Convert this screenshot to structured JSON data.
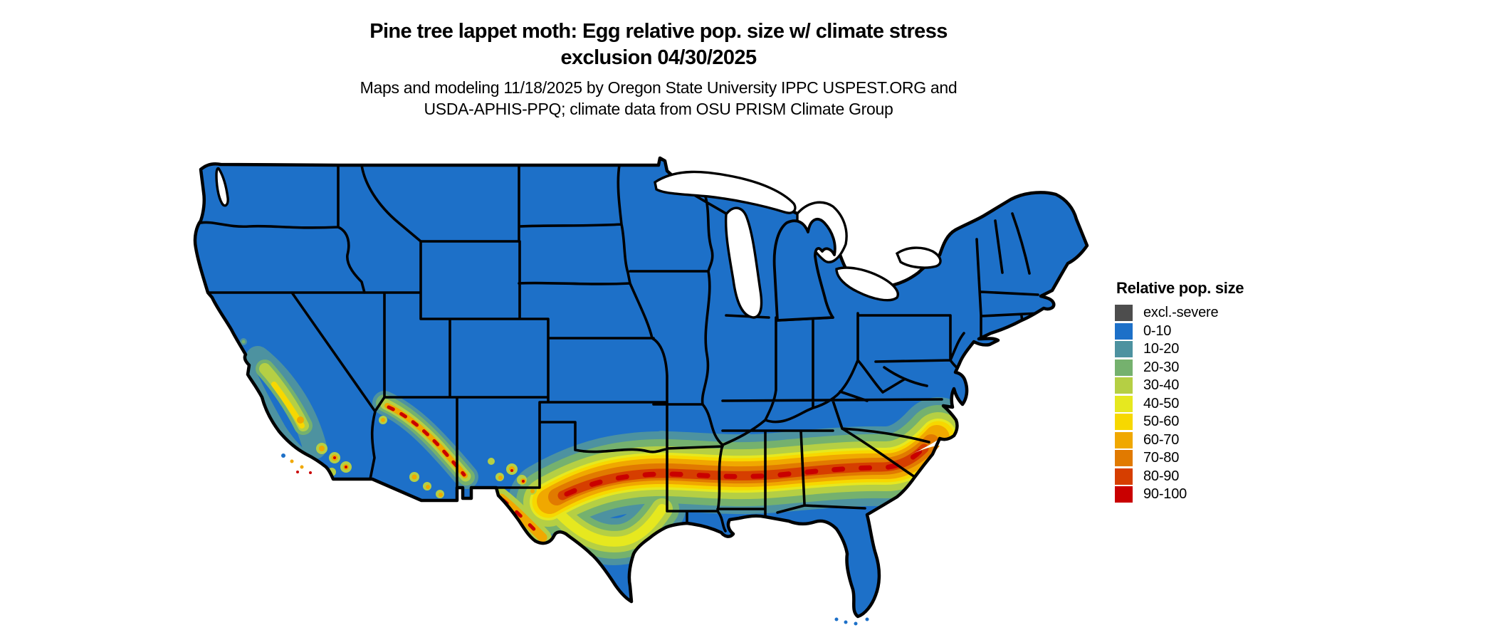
{
  "title": {
    "line1": "Pine tree lappet moth: Egg relative pop. size w/ climate stress",
    "line2": "exclusion 04/30/2025"
  },
  "subtitle": {
    "line1": "Maps and modeling 11/18/2025 by Oregon State University IPPC USPEST.ORG and",
    "line2": "USDA-APHIS-PPQ; climate data from OSU PRISM Climate Group"
  },
  "legend": {
    "title": "Relative pop. size",
    "classes": [
      {
        "label": "excl.-severe",
        "color": "#4d4d4d"
      },
      {
        "label": "0-10",
        "color": "#1d70c8"
      },
      {
        "label": "10-20",
        "color": "#4d92a0"
      },
      {
        "label": "20-30",
        "color": "#75b16e"
      },
      {
        "label": "30-40",
        "color": "#b5cf44"
      },
      {
        "label": "40-50",
        "color": "#e6e81f"
      },
      {
        "label": "50-60",
        "color": "#f7d800"
      },
      {
        "label": "60-70",
        "color": "#f0a800"
      },
      {
        "label": "70-80",
        "color": "#e17a00"
      },
      {
        "label": "80-90",
        "color": "#d63e00"
      },
      {
        "label": "90-100",
        "color": "#c90000"
      }
    ]
  },
  "map": {
    "region": "Contiguous United States",
    "base_class": "0-10",
    "border_color": "#000000",
    "water_color": "#ffffff",
    "high_value_areas": [
      "South-central band from west Texas through Oklahoma/Texas Red River region, Louisiana, Mississippi, Alabama, Georgia to coastal South/North Carolina",
      "Southern California mountains and Central Valley margins",
      "Arizona Mogollon Rim and southeast Arizona / southwest New Mexico ranges"
    ]
  }
}
